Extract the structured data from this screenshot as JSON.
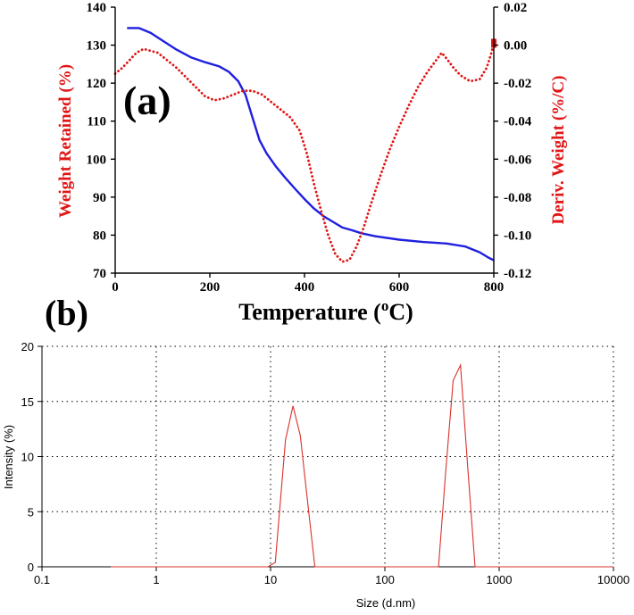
{
  "figure": {
    "panel_a_label": "(a)",
    "panel_b_label": "(b)"
  },
  "chart_data": [
    {
      "panel": "(a)",
      "type": "line",
      "xlabel": "Temperature",
      "xlabel_unit": "(⁰C)",
      "xlabel_sup": "o",
      "xlabel_unit_suffix": "C)",
      "xlabel_prefix": "Temperature (",
      "ylabel": "Weight Retained (%)",
      "y2label": "Deriv. Weight (%/C)",
      "xlim": [
        0,
        800
      ],
      "ylim": [
        70,
        140
      ],
      "y2lim": [
        -0.12,
        0.02
      ],
      "x_ticks": [
        "0",
        "200",
        "400",
        "600",
        "800"
      ],
      "y_ticks": [
        "70",
        "80",
        "90",
        "100",
        "110",
        "120",
        "130",
        "140"
      ],
      "y2_ticks": [
        "-0.12",
        "-0.10",
        "-0.08",
        "-0.06",
        "-0.04",
        "-0.02",
        "0.00",
        "0.02"
      ],
      "colors": {
        "weight": "#1f1fe0",
        "deriv": "#e01515",
        "ylabel": "#e01515"
      },
      "series": [
        {
          "axis": "left",
          "style": "solid",
          "color": "#1f1fe0",
          "x": [
            25,
            50,
            75,
            100,
            130,
            160,
            190,
            220,
            240,
            260,
            275,
            290,
            305,
            320,
            340,
            360,
            380,
            400,
            420,
            440,
            460,
            480,
            500,
            520,
            550,
            600,
            650,
            700,
            740,
            770,
            790,
            800
          ],
          "y": [
            134.5,
            134.5,
            133.2,
            131.2,
            128.8,
            126.8,
            125.5,
            124.4,
            123,
            120.5,
            117,
            111,
            105,
            101.5,
            98,
            95,
            92.2,
            89.5,
            87,
            85,
            83.5,
            82,
            81.3,
            80.5,
            79.7,
            78.8,
            78.2,
            77.8,
            77,
            75.5,
            74,
            73.4
          ]
        },
        {
          "axis": "right",
          "style": "dotted",
          "color": "#e01515",
          "x": [
            0,
            15,
            30,
            45,
            60,
            75,
            90,
            110,
            130,
            150,
            170,
            190,
            210,
            230,
            250,
            270,
            290,
            310,
            330,
            350,
            370,
            390,
            405,
            420,
            435,
            450,
            465,
            480,
            495,
            510,
            525,
            540,
            560,
            580,
            600,
            620,
            640,
            660,
            675,
            690,
            700,
            715,
            730,
            750,
            770,
            785,
            795,
            800
          ],
          "y": [
            -0.015,
            -0.012,
            -0.008,
            -0.004,
            -0.002,
            -0.003,
            -0.004,
            -0.008,
            -0.012,
            -0.017,
            -0.022,
            -0.027,
            -0.029,
            -0.028,
            -0.026,
            -0.024,
            -0.024,
            -0.026,
            -0.03,
            -0.034,
            -0.038,
            -0.045,
            -0.057,
            -0.073,
            -0.087,
            -0.1,
            -0.11,
            -0.114,
            -0.113,
            -0.106,
            -0.096,
            -0.084,
            -0.069,
            -0.055,
            -0.043,
            -0.032,
            -0.022,
            -0.014,
            -0.009,
            -0.004,
            -0.007,
            -0.012,
            -0.016,
            -0.019,
            -0.018,
            -0.012,
            -0.004,
            0.001
          ]
        }
      ]
    },
    {
      "panel": "(b)",
      "type": "line",
      "xscale": "log",
      "xlabel": "Size (d.nm)",
      "ylabel": "Intensity (%)",
      "xlim": [
        0.1,
        10000
      ],
      "ylim": [
        0,
        20
      ],
      "x_ticks": [
        "0.1",
        "1",
        "10",
        "100",
        "1000",
        "10000"
      ],
      "y_ticks": [
        "0",
        "5",
        "10",
        "15",
        "20"
      ],
      "grid": true,
      "colors": {
        "line": "#d9312b"
      },
      "series": [
        {
          "color": "#d9312b",
          "x": [
            0.4,
            9.5,
            11,
            13.5,
            15.7,
            18.2,
            21,
            24.4,
            295,
            340,
            396,
            459,
            532,
            615,
            10000
          ],
          "y": [
            0,
            0,
            0.4,
            11.5,
            14.6,
            11.9,
            6.1,
            0,
            0,
            8.5,
            16.9,
            18.3,
            8.9,
            0,
            0
          ]
        }
      ]
    }
  ]
}
